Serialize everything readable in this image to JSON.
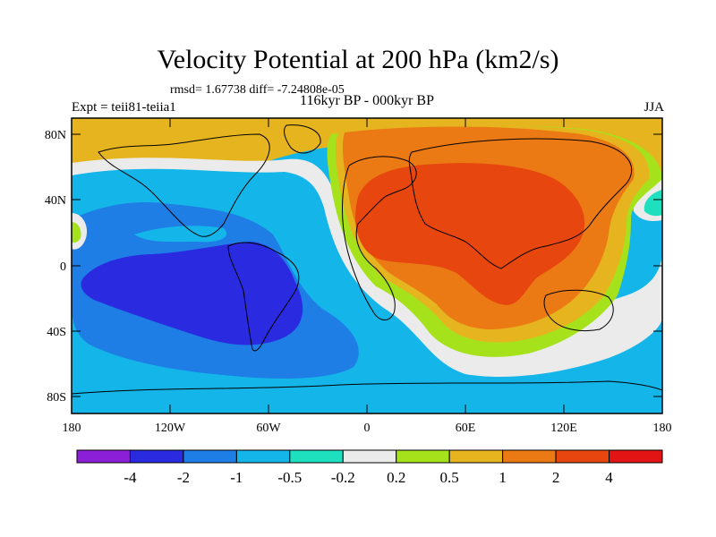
{
  "title": "Velocity Potential at 200 hPa (km2/s)",
  "stats": "rmsd= 1.67738 diff= -7.24808e-05",
  "experiment": "Expt = teii81-teiia1",
  "period": "116kyr BP - 000kyr BP",
  "season": "JJA",
  "axes": {
    "lat_ticks": [
      "80N",
      "40N",
      "0",
      "40S",
      "80S"
    ],
    "lon_ticks": [
      "180",
      "120W",
      "60W",
      "0",
      "60E",
      "120E",
      "180"
    ]
  },
  "colorbar": {
    "labels": [
      "-4",
      "-2",
      "-1",
      "-0.5",
      "-0.2",
      "0.2",
      "0.5",
      "1",
      "2",
      "4"
    ],
    "colors": [
      "#8b1fd8",
      "#2a2ae0",
      "#1e7ee6",
      "#14b5e8",
      "#1ee0bf",
      "#ebebeb",
      "#a6e21c",
      "#e6b41e",
      "#eb7a14",
      "#e8460f",
      "#e31414"
    ]
  }
}
